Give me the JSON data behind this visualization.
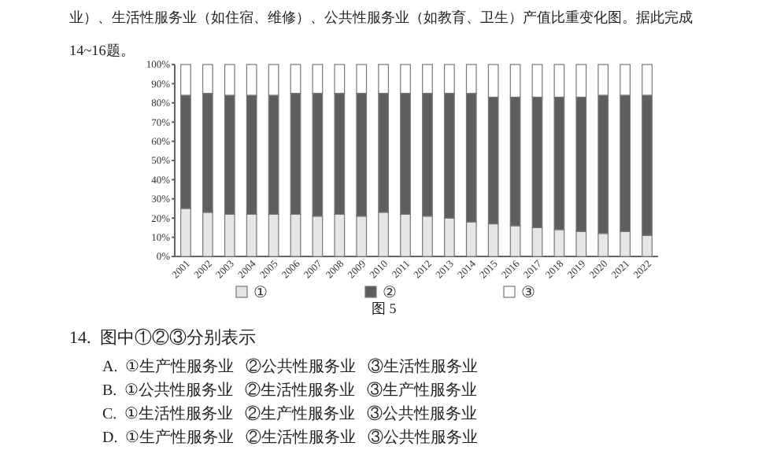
{
  "chart_data": {
    "type": "bar",
    "stacked": true,
    "title": "业）、生活性服务业（如住宿、维修）、公共性服务业（如教育、卫生）产值比重变化图。据此完成14~16题。",
    "categories": [
      "2001",
      "2002",
      "2003",
      "2004",
      "2005",
      "2006",
      "2007",
      "2008",
      "2009",
      "2010",
      "2011",
      "2012",
      "2013",
      "2014",
      "2015",
      "2016",
      "2017",
      "2018",
      "2019",
      "2020",
      "2021",
      "2022"
    ],
    "series": [
      {
        "name": "①",
        "color": "#e6e6e6",
        "values": [
          25,
          23,
          22,
          22,
          22,
          22,
          21,
          22,
          21,
          23,
          22,
          21,
          20,
          18,
          17,
          16,
          15,
          14,
          13,
          12,
          13,
          11
        ]
      },
      {
        "name": "②",
        "color": "#5e5e5e",
        "values": [
          59,
          62,
          62,
          62,
          62,
          63,
          64,
          63,
          64,
          62,
          63,
          64,
          65,
          67,
          66,
          67,
          68,
          69,
          70,
          72,
          71,
          73
        ]
      },
      {
        "name": "③",
        "color": "#ffffff",
        "values": [
          16,
          15,
          16,
          16,
          16,
          15,
          15,
          15,
          15,
          15,
          15,
          15,
          15,
          15,
          17,
          17,
          17,
          17,
          17,
          16,
          16,
          16
        ]
      }
    ],
    "ylim": [
      0,
      100
    ],
    "yticks": [
      {
        "value": 0,
        "label": "0%"
      },
      {
        "value": 10,
        "label": "10%"
      },
      {
        "value": 20,
        "label": "20%"
      },
      {
        "value": 30,
        "label": "30%"
      },
      {
        "value": 40,
        "label": "40%"
      },
      {
        "value": 50,
        "label": "50%"
      },
      {
        "value": 60,
        "label": "60%"
      },
      {
        "value": 70,
        "label": "70%"
      },
      {
        "value": 80,
        "label": "80%"
      },
      {
        "value": 90,
        "label": "90%"
      },
      {
        "value": 100,
        "label": "100%"
      }
    ],
    "legend": "bottom",
    "annotations": [
      "图 5",
      "14.  图中①②③分别表示",
      "A.  ①生产性服务业   ②公共性服务业   ③生活性服务业",
      "B.  ①公共性服务业   ②生活性服务业   ③生产性服务业",
      "C.  ①生活性服务业   ②生产性服务业   ③公共性服务业",
      "D.  ①生产性服务业   ②生活性服务业   ③公共性服务业"
    ]
  }
}
